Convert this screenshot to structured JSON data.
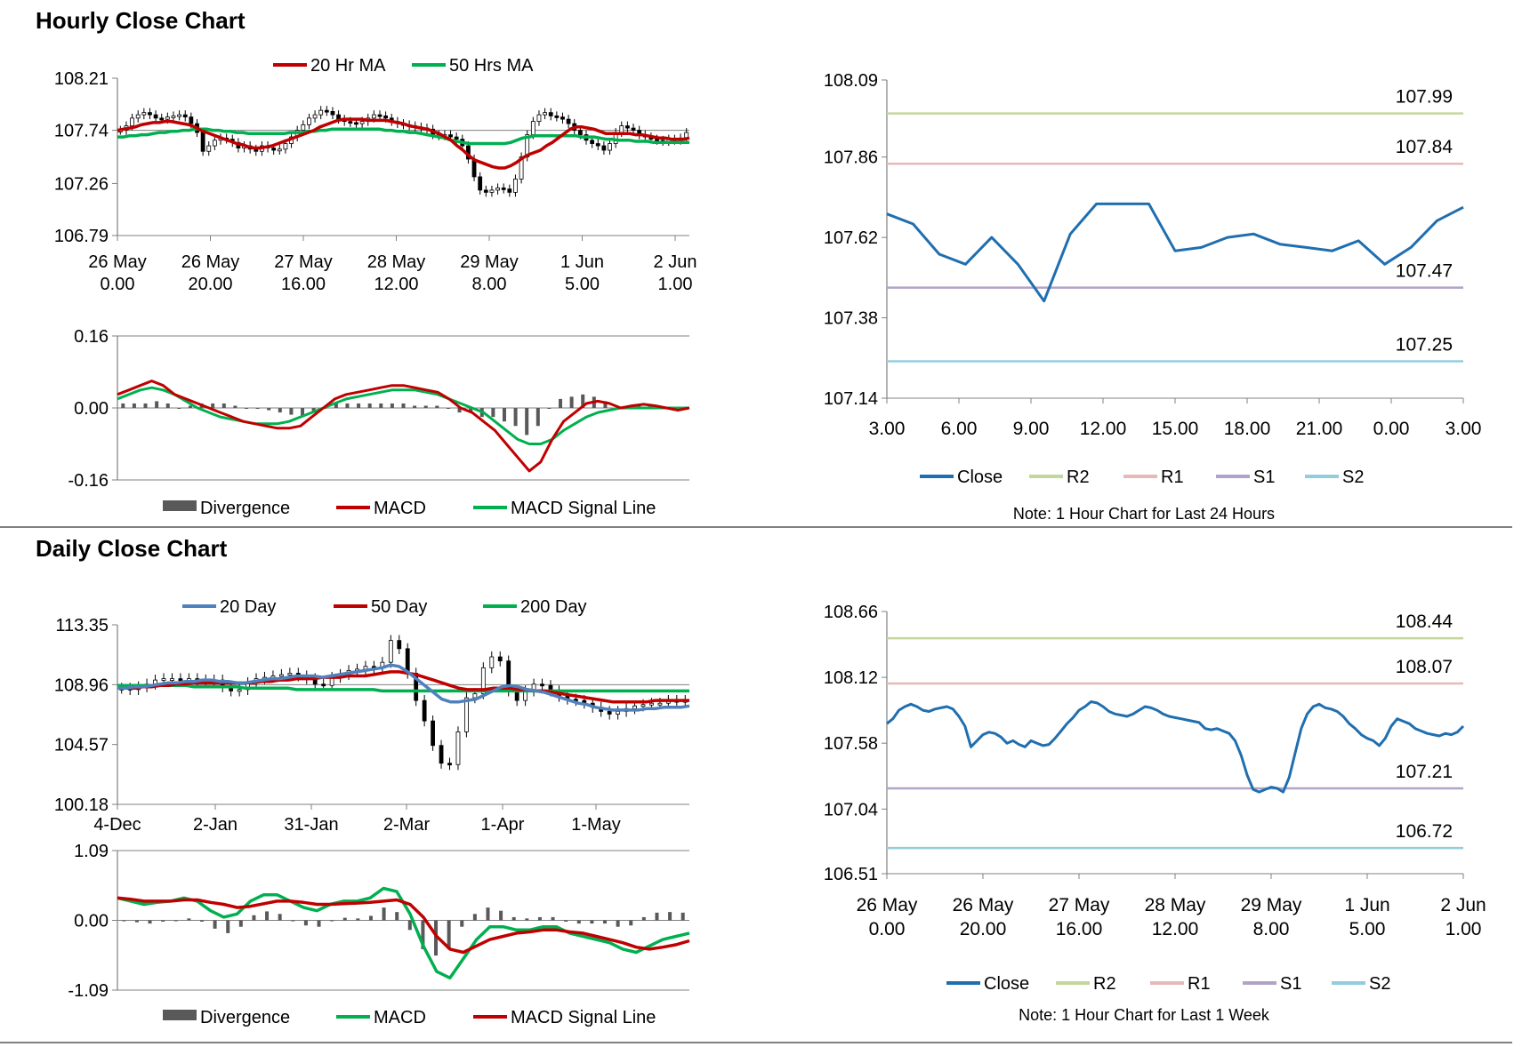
{
  "titles": {
    "hourly": "Hourly Close Chart",
    "daily": "Daily Close Chart"
  },
  "colors": {
    "red": "#c00000",
    "green": "#00b050",
    "blue": "#1f6fb0",
    "r2": "#c3d69b",
    "r1": "#e6b9b8",
    "s1": "#b3a2c7",
    "s2": "#93cddd",
    "div": "#595959",
    "ma20d": "#4f81bd"
  },
  "chart_data": [
    {
      "id": "hourly_price",
      "type": "candlestick",
      "ylim": [
        106.79,
        108.21
      ],
      "yticks": [
        "108.21",
        "107.74",
        "107.26",
        "106.79"
      ],
      "xticks": [
        [
          "26 May",
          "0.00"
        ],
        [
          "26 May",
          "20.00"
        ],
        [
          "27 May",
          "16.00"
        ],
        [
          "28 May",
          "12.00"
        ],
        [
          "29 May",
          "8.00"
        ],
        [
          "1 Jun",
          "5.00"
        ],
        [
          "2 Jun",
          "1.00"
        ]
      ],
      "legend": [
        "20 Hr MA",
        "50 Hrs MA"
      ],
      "close": [
        107.74,
        107.78,
        107.85,
        107.88,
        107.9,
        107.88,
        107.85,
        107.84,
        107.86,
        107.87,
        107.88,
        107.86,
        107.8,
        107.72,
        107.55,
        107.6,
        107.65,
        107.67,
        107.66,
        107.63,
        107.58,
        107.6,
        107.57,
        107.55,
        107.6,
        107.58,
        107.56,
        107.57,
        107.62,
        107.68,
        107.74,
        107.79,
        107.85,
        107.88,
        107.92,
        107.91,
        107.88,
        107.84,
        107.82,
        107.81,
        107.8,
        107.82,
        107.85,
        107.88,
        107.87,
        107.85,
        107.82,
        107.8,
        107.79,
        107.78,
        107.77,
        107.76,
        107.75,
        107.7,
        107.69,
        107.7,
        107.68,
        107.66,
        107.6,
        107.48,
        107.32,
        107.2,
        107.18,
        107.2,
        107.22,
        107.21,
        107.18,
        107.3,
        107.5,
        107.7,
        107.82,
        107.88,
        107.9,
        107.87,
        107.86,
        107.84,
        107.8,
        107.74,
        107.7,
        107.65,
        107.62,
        107.6,
        107.56,
        107.62,
        107.72,
        107.78,
        107.76,
        107.74,
        107.7,
        107.68,
        107.66,
        107.65,
        107.64,
        107.66,
        107.65,
        107.67,
        107.72
      ],
      "ma20": [
        107.74,
        107.75,
        107.76,
        107.77,
        107.79,
        107.8,
        107.81,
        107.81,
        107.82,
        107.82,
        107.81,
        107.8,
        107.79,
        107.77,
        107.74,
        107.72,
        107.7,
        107.68,
        107.66,
        107.64,
        107.62,
        107.61,
        107.59,
        107.58,
        107.58,
        107.59,
        107.6,
        107.62,
        107.64,
        107.66,
        107.68,
        107.7,
        107.72,
        107.74,
        107.77,
        107.79,
        107.81,
        107.83,
        107.84,
        107.84,
        107.84,
        107.84,
        107.83,
        107.83,
        107.83,
        107.83,
        107.82,
        107.81,
        107.8,
        107.78,
        107.77,
        107.76,
        107.75,
        107.73,
        107.71,
        107.68,
        107.65,
        107.6,
        107.56,
        107.51,
        107.47,
        107.45,
        107.43,
        107.41,
        107.4,
        107.4,
        107.42,
        107.45,
        107.49,
        107.52,
        107.54,
        107.56,
        107.6,
        107.63,
        107.67,
        107.71,
        107.75,
        107.77,
        107.77,
        107.76,
        107.75,
        107.73,
        107.71,
        107.71,
        107.71,
        107.71,
        107.71,
        107.7,
        107.7,
        107.69,
        107.68,
        107.67,
        107.67,
        107.66,
        107.66,
        107.66,
        107.67
      ],
      "ma50": [
        107.68,
        107.68,
        107.69,
        107.69,
        107.7,
        107.7,
        107.71,
        107.72,
        107.72,
        107.73,
        107.73,
        107.74,
        107.74,
        107.75,
        107.75,
        107.75,
        107.74,
        107.74,
        107.73,
        107.73,
        107.72,
        107.72,
        107.71,
        107.71,
        107.71,
        107.71,
        107.71,
        107.71,
        107.71,
        107.72,
        107.72,
        107.72,
        107.73,
        107.73,
        107.74,
        107.74,
        107.75,
        107.75,
        107.75,
        107.75,
        107.75,
        107.75,
        107.75,
        107.75,
        107.75,
        107.74,
        107.74,
        107.73,
        107.73,
        107.72,
        107.72,
        107.71,
        107.7,
        107.69,
        107.68,
        107.67,
        107.65,
        107.64,
        107.63,
        107.62,
        107.62,
        107.62,
        107.62,
        107.62,
        107.62,
        107.62,
        107.63,
        107.65,
        107.67,
        107.68,
        107.69,
        107.69,
        107.69,
        107.69,
        107.69,
        107.69,
        107.69,
        107.69,
        107.68,
        107.68,
        107.68,
        107.67,
        107.66,
        107.66,
        107.65,
        107.65,
        107.65,
        107.64,
        107.64,
        107.64,
        107.63,
        107.63,
        107.63,
        107.63,
        107.63,
        107.63,
        107.63
      ]
    },
    {
      "id": "hourly_macd",
      "type": "line+bar",
      "ylim": [
        -0.16,
        0.16
      ],
      "yticks": [
        "0.16",
        "0.00",
        "-0.16"
      ],
      "legend": [
        "Divergence",
        "MACD",
        "MACD Signal Line"
      ],
      "macd": [
        0.03,
        0.04,
        0.05,
        0.06,
        0.05,
        0.03,
        0.02,
        0.01,
        0.0,
        -0.01,
        -0.02,
        -0.03,
        -0.035,
        -0.04,
        -0.045,
        -0.045,
        -0.04,
        -0.02,
        0.0,
        0.02,
        0.03,
        0.035,
        0.04,
        0.045,
        0.05,
        0.05,
        0.045,
        0.04,
        0.035,
        0.02,
        0.0,
        -0.01,
        -0.03,
        -0.05,
        -0.08,
        -0.11,
        -0.14,
        -0.12,
        -0.07,
        -0.03,
        -0.01,
        0.01,
        0.015,
        0.01,
        0.0,
        0.005,
        0.008,
        0.005,
        0.0,
        -0.005,
        0.0
      ],
      "signal": [
        0.02,
        0.03,
        0.04,
        0.045,
        0.04,
        0.03,
        0.015,
        0.0,
        -0.01,
        -0.02,
        -0.025,
        -0.03,
        -0.035,
        -0.035,
        -0.035,
        -0.03,
        -0.02,
        -0.01,
        0.0,
        0.01,
        0.02,
        0.025,
        0.03,
        0.035,
        0.04,
        0.04,
        0.04,
        0.035,
        0.03,
        0.02,
        0.01,
        0.0,
        -0.01,
        -0.03,
        -0.05,
        -0.07,
        -0.08,
        -0.08,
        -0.07,
        -0.05,
        -0.035,
        -0.02,
        -0.01,
        -0.005,
        0.0,
        0.0,
        0.0,
        0.0,
        0.0,
        0.0,
        0.0
      ],
      "divergence": [
        0.01,
        0.01,
        0.01,
        0.015,
        0.01,
        0.0,
        0.005,
        0.01,
        0.01,
        0.01,
        0.005,
        0.0,
        0.0,
        -0.005,
        -0.01,
        -0.015,
        -0.02,
        -0.01,
        0.0,
        0.01,
        0.01,
        0.01,
        0.01,
        0.01,
        0.01,
        0.01,
        0.005,
        0.005,
        0.005,
        0.0,
        -0.01,
        -0.01,
        -0.02,
        -0.02,
        -0.03,
        -0.04,
        -0.06,
        -0.04,
        0.0,
        0.02,
        0.025,
        0.03,
        0.025,
        0.015,
        0.0,
        0.005,
        0.008,
        0.005,
        0.0,
        -0.005,
        0.0
      ]
    },
    {
      "id": "hourly_24h",
      "type": "line",
      "ylim": [
        107.14,
        108.09
      ],
      "yticks": [
        "108.09",
        "107.86",
        "107.62",
        "107.38",
        "107.14"
      ],
      "xticks": [
        "3.00",
        "6.00",
        "9.00",
        "12.00",
        "15.00",
        "18.00",
        "21.00",
        "0.00",
        "3.00"
      ],
      "close": [
        107.69,
        107.66,
        107.57,
        107.54,
        107.62,
        107.54,
        107.43,
        107.63,
        107.72,
        107.72,
        107.72,
        107.58,
        107.59,
        107.62,
        107.63,
        107.6,
        107.59,
        107.58,
        107.61,
        107.54,
        107.59,
        107.67,
        107.71
      ],
      "levels": {
        "R2": 107.99,
        "R1": 107.84,
        "S1": 107.47,
        "S2": 107.25
      },
      "level_labels": {
        "R2": "107.99",
        "R1": "107.84",
        "S1": "107.47",
        "S2": "107.25"
      },
      "legend": [
        "Close",
        "R2",
        "R1",
        "S1",
        "S2"
      ],
      "note": "Note: 1 Hour Chart for Last 24 Hours"
    },
    {
      "id": "daily_price",
      "type": "candlestick",
      "ylim": [
        100.18,
        113.35
      ],
      "yticks": [
        "113.35",
        "108.96",
        "104.57",
        "100.18"
      ],
      "xticks": [
        "4-Dec",
        "2-Jan",
        "31-Jan",
        "2-Mar",
        "1-Apr",
        "1-May"
      ],
      "legend": [
        "20 Day",
        "50 Day",
        "200 Day"
      ],
      "close": [
        108.7,
        108.6,
        108.8,
        109.0,
        109.3,
        109.4,
        109.4,
        109.3,
        109.4,
        109.3,
        109.2,
        109.3,
        108.8,
        108.5,
        108.6,
        109.1,
        109.4,
        109.5,
        109.6,
        109.7,
        109.8,
        109.6,
        109.4,
        109.0,
        108.9,
        109.5,
        109.7,
        110.0,
        110.1,
        110.3,
        110.2,
        110.6,
        112.2,
        111.6,
        109.8,
        107.8,
        106.3,
        104.5,
        103.2,
        103.1,
        105.5,
        108.0,
        108.3,
        110.2,
        111.0,
        110.7,
        108.5,
        107.8,
        108.5,
        109.0,
        108.9,
        108.5,
        108.1,
        107.9,
        107.8,
        107.6,
        107.3,
        107.0,
        106.8,
        107.0,
        107.2,
        107.4,
        107.5,
        107.6,
        107.6,
        107.8,
        107.7,
        107.8
      ],
      "ma20": [
        108.7,
        108.7,
        108.8,
        108.8,
        108.9,
        109.0,
        109.1,
        109.1,
        109.2,
        109.2,
        109.3,
        109.3,
        109.2,
        109.2,
        109.1,
        109.1,
        109.2,
        109.3,
        109.4,
        109.4,
        109.5,
        109.6,
        109.6,
        109.6,
        109.5,
        109.6,
        109.7,
        109.8,
        109.9,
        110.0,
        110.1,
        110.2,
        110.4,
        110.3,
        109.9,
        109.4,
        108.9,
        108.4,
        107.9,
        107.7,
        107.7,
        107.8,
        107.9,
        108.2,
        108.5,
        108.8,
        108.9,
        108.8,
        108.6,
        108.5,
        108.4,
        108.2,
        108.0,
        107.8,
        107.6,
        107.5,
        107.3,
        107.2,
        107.1,
        107.1,
        107.1,
        107.1,
        107.2,
        107.2,
        107.3,
        107.3,
        107.3,
        107.4
      ],
      "ma50": [
        108.7,
        108.7,
        108.7,
        108.8,
        108.8,
        108.9,
        108.9,
        109.0,
        109.0,
        109.1,
        109.1,
        109.1,
        109.1,
        109.1,
        109.1,
        109.1,
        109.1,
        109.2,
        109.2,
        109.3,
        109.3,
        109.4,
        109.4,
        109.4,
        109.5,
        109.5,
        109.5,
        109.6,
        109.6,
        109.6,
        109.7,
        109.8,
        109.9,
        109.9,
        109.8,
        109.7,
        109.5,
        109.3,
        109.1,
        108.9,
        108.7,
        108.6,
        108.6,
        108.6,
        108.7,
        108.7,
        108.7,
        108.6,
        108.6,
        108.5,
        108.5,
        108.4,
        108.3,
        108.2,
        108.1,
        108.0,
        107.9,
        107.8,
        107.7,
        107.7,
        107.7,
        107.7,
        107.7,
        107.8,
        107.8,
        107.8,
        107.8,
        107.8
      ],
      "ma200": [
        108.9,
        108.9,
        108.9,
        108.9,
        108.9,
        108.9,
        108.9,
        108.9,
        108.9,
        108.8,
        108.8,
        108.8,
        108.8,
        108.8,
        108.8,
        108.7,
        108.7,
        108.7,
        108.7,
        108.7,
        108.7,
        108.6,
        108.6,
        108.6,
        108.6,
        108.6,
        108.6,
        108.6,
        108.6,
        108.6,
        108.6,
        108.5,
        108.5,
        108.5,
        108.5,
        108.5,
        108.5,
        108.5,
        108.5,
        108.5,
        108.5,
        108.5,
        108.5,
        108.5,
        108.5,
        108.5,
        108.5,
        108.5,
        108.5,
        108.5,
        108.5,
        108.5,
        108.5,
        108.5,
        108.5,
        108.5,
        108.5,
        108.5,
        108.5,
        108.5,
        108.5,
        108.5,
        108.5,
        108.5,
        108.5,
        108.5,
        108.5,
        108.5
      ]
    },
    {
      "id": "daily_macd",
      "type": "line+bar",
      "ylim": [
        -1.09,
        1.09
      ],
      "yticks": [
        "1.09",
        "0.00",
        "-1.09"
      ],
      "legend": [
        "Divergence",
        "MACD",
        "MACD Signal Line"
      ],
      "macd": [
        0.35,
        0.3,
        0.25,
        0.28,
        0.3,
        0.35,
        0.3,
        0.15,
        0.05,
        0.1,
        0.3,
        0.4,
        0.4,
        0.3,
        0.2,
        0.15,
        0.25,
        0.3,
        0.3,
        0.35,
        0.5,
        0.45,
        0.1,
        -0.4,
        -0.8,
        -0.9,
        -0.6,
        -0.3,
        -0.1,
        -0.1,
        -0.15,
        -0.15,
        -0.1,
        -0.1,
        -0.2,
        -0.25,
        -0.3,
        -0.35,
        -0.45,
        -0.5,
        -0.4,
        -0.3,
        -0.25,
        -0.2
      ],
      "signal": [
        0.35,
        0.33,
        0.3,
        0.3,
        0.3,
        0.32,
        0.32,
        0.28,
        0.25,
        0.2,
        0.22,
        0.26,
        0.3,
        0.3,
        0.28,
        0.25,
        0.25,
        0.26,
        0.27,
        0.28,
        0.3,
        0.32,
        0.25,
        0.05,
        -0.25,
        -0.45,
        -0.5,
        -0.4,
        -0.3,
        -0.25,
        -0.2,
        -0.18,
        -0.15,
        -0.15,
        -0.18,
        -0.2,
        -0.25,
        -0.3,
        -0.35,
        -0.42,
        -0.45,
        -0.42,
        -0.38,
        -0.32
      ],
      "divergence": [
        0.0,
        -0.03,
        -0.05,
        -0.02,
        0.0,
        0.03,
        -0.02,
        -0.13,
        -0.2,
        -0.1,
        0.08,
        0.14,
        0.1,
        0.0,
        -0.08,
        -0.1,
        0.0,
        0.04,
        0.03,
        0.07,
        0.2,
        0.13,
        -0.15,
        -0.45,
        -0.55,
        -0.45,
        -0.1,
        0.1,
        0.2,
        0.15,
        0.05,
        0.03,
        0.05,
        0.05,
        -0.02,
        -0.05,
        -0.05,
        -0.05,
        -0.1,
        -0.08,
        0.05,
        0.12,
        0.13,
        0.12
      ]
    },
    {
      "id": "daily_week",
      "type": "line",
      "ylim": [
        106.51,
        108.66
      ],
      "yticks": [
        "108.66",
        "108.12",
        "107.58",
        "107.04",
        "106.51"
      ],
      "xticks": [
        [
          "26 May",
          "0.00"
        ],
        [
          "26 May",
          "20.00"
        ],
        [
          "27 May",
          "16.00"
        ],
        [
          "28 May",
          "12.00"
        ],
        [
          "29 May",
          "8.00"
        ],
        [
          "1 Jun",
          "5.00"
        ],
        [
          "2 Jun",
          "1.00"
        ]
      ],
      "close": [
        107.74,
        107.78,
        107.85,
        107.88,
        107.9,
        107.88,
        107.85,
        107.84,
        107.86,
        107.87,
        107.88,
        107.86,
        107.8,
        107.72,
        107.55,
        107.6,
        107.65,
        107.67,
        107.66,
        107.63,
        107.58,
        107.6,
        107.57,
        107.55,
        107.6,
        107.58,
        107.56,
        107.57,
        107.62,
        107.68,
        107.74,
        107.79,
        107.85,
        107.88,
        107.92,
        107.91,
        107.88,
        107.84,
        107.82,
        107.81,
        107.8,
        107.82,
        107.85,
        107.88,
        107.87,
        107.85,
        107.82,
        107.8,
        107.79,
        107.78,
        107.77,
        107.76,
        107.75,
        107.7,
        107.69,
        107.7,
        107.68,
        107.66,
        107.6,
        107.48,
        107.32,
        107.2,
        107.18,
        107.2,
        107.22,
        107.21,
        107.18,
        107.3,
        107.5,
        107.7,
        107.82,
        107.88,
        107.9,
        107.87,
        107.86,
        107.84,
        107.8,
        107.74,
        107.7,
        107.65,
        107.62,
        107.6,
        107.56,
        107.62,
        107.72,
        107.78,
        107.76,
        107.74,
        107.7,
        107.68,
        107.66,
        107.65,
        107.64,
        107.66,
        107.65,
        107.67,
        107.72
      ],
      "levels": {
        "R2": 108.44,
        "R1": 108.07,
        "S1": 107.21,
        "S2": 106.72
      },
      "level_labels": {
        "R2": "108.44",
        "R1": "108.07",
        "S1": "107.21",
        "S2": "106.72"
      },
      "legend": [
        "Close",
        "R2",
        "R1",
        "S1",
        "S2"
      ],
      "note": "Note: 1 Hour Chart for Last 1 Week"
    }
  ]
}
